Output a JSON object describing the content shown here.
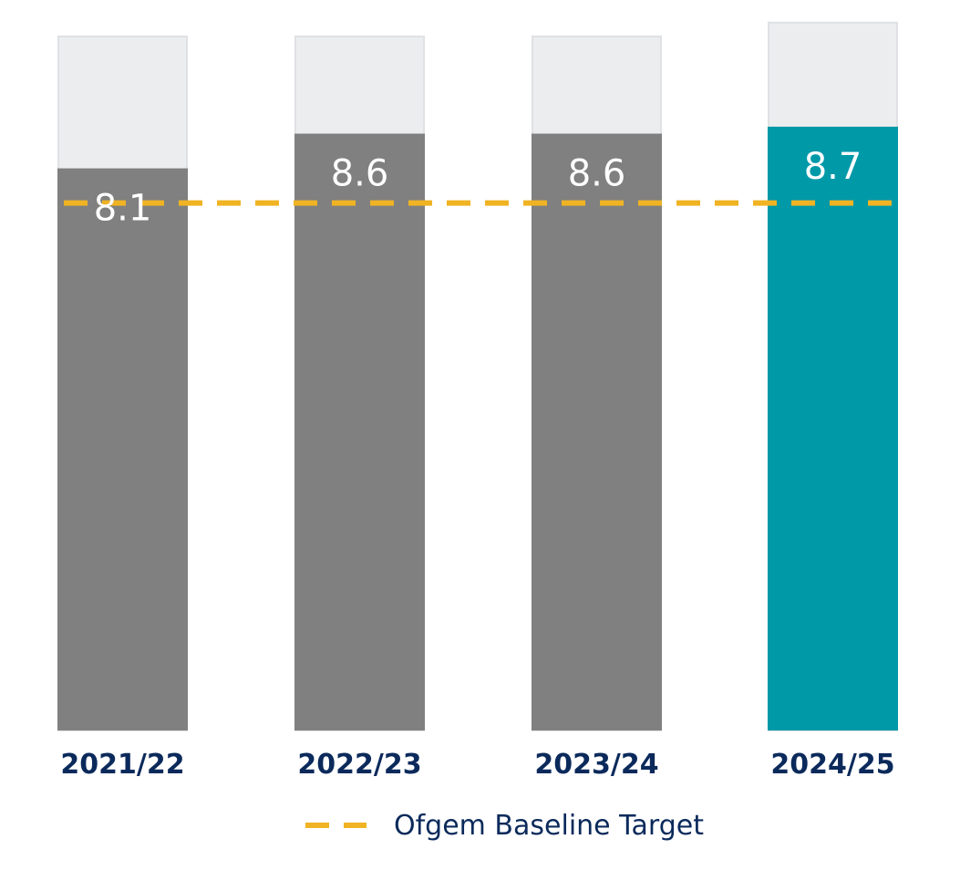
{
  "chart_data": {
    "type": "bar",
    "categories": [
      "2021/22",
      "2022/23",
      "2023/24",
      "2024/25"
    ],
    "values": [
      8.1,
      8.6,
      8.6,
      8.7
    ],
    "value_labels": [
      "8.1",
      "8.6",
      "8.6",
      "8.7"
    ],
    "target": 7.6,
    "ylim": [
      0,
      10
    ],
    "grid": false,
    "legend": {
      "placement": "bottom-center",
      "label": "Ofgem Baseline Target"
    },
    "colors": {
      "bar": "#808080",
      "bar_highlight": "#0099a8",
      "bar_background": "#ecedef",
      "bar_background_border": "#dfe1e4",
      "target_line": "#f0b323",
      "category_text": "#0b2a5b",
      "value_text": "#ffffff"
    },
    "highlight_index": 3,
    "background_caps": [
      10,
      10,
      10,
      10.2
    ]
  }
}
